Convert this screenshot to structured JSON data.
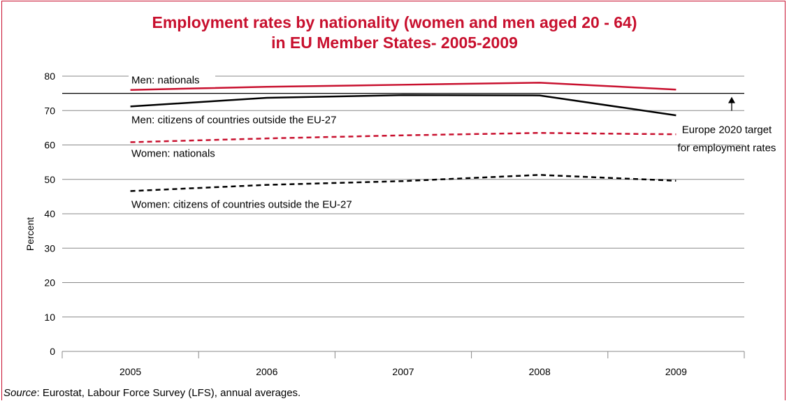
{
  "chart_data": {
    "type": "line",
    "title_line1": "Employment rates by nationality (women and men aged 20 - 64)",
    "title_line2": "in EU Member States- 2005-2009",
    "ylabel": "Percent",
    "xlabel": "",
    "categories": [
      "2005",
      "2006",
      "2007",
      "2008",
      "2009"
    ],
    "ylim": [
      0,
      80
    ],
    "yticks": [
      0,
      10,
      20,
      30,
      40,
      50,
      60,
      70,
      80
    ],
    "grid": true,
    "series": [
      {
        "name": "Men: nationals",
        "values": [
          76.0,
          76.9,
          77.5,
          78.1,
          76.1
        ],
        "color": "#c8102e",
        "dash": "solid"
      },
      {
        "name": "Men: citizens of countries outside the EU-27",
        "values": [
          71.2,
          73.7,
          74.5,
          74.4,
          68.6
        ],
        "color": "#000000",
        "dash": "solid"
      },
      {
        "name": "Women: nationals",
        "values": [
          60.8,
          61.9,
          62.8,
          63.5,
          63.1
        ],
        "color": "#c8102e",
        "dash": "dashed"
      },
      {
        "name": "Women: citizens of countries outside the EU-27",
        "values": [
          46.6,
          48.4,
          49.5,
          51.3,
          49.6
        ],
        "color": "#000000",
        "dash": "dashed"
      }
    ],
    "target": {
      "value": 75,
      "label_line1": "Europe 2020 target",
      "label_line2": "for employment rates"
    }
  },
  "source": {
    "prefix": "Source",
    "text": ": Eurostat, Labour Force Survey (LFS), annual averages."
  }
}
